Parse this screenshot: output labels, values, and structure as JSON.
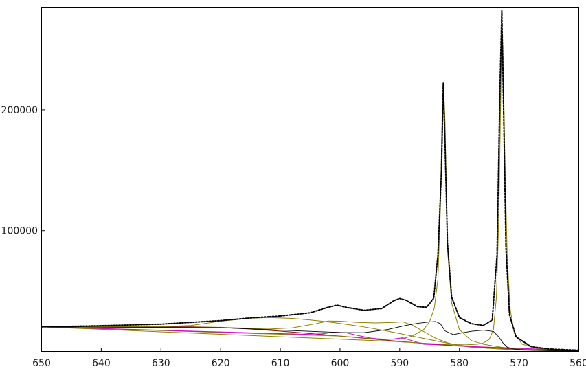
{
  "chart_data": {
    "type": "line",
    "title": "",
    "xlabel": "",
    "ylabel": "",
    "x_reversed": true,
    "xlim": [
      650,
      560
    ],
    "ylim": [
      0,
      285000
    ],
    "x_ticks": [
      650,
      640,
      630,
      620,
      610,
      600,
      590,
      580,
      570,
      560
    ],
    "x_tick_labels": [
      "650",
      "640",
      "630",
      "620",
      "610",
      "600",
      "590",
      "580",
      "570",
      "560"
    ],
    "y_ticks": [
      100000,
      200000
    ],
    "y_tick_labels": [
      "100000",
      "200000"
    ],
    "grid": false,
    "legend": "none",
    "colors": {
      "data": "#000000",
      "envelope": "#000000",
      "background": "#8b1a1a",
      "component": "#8b8000",
      "component_small": "#cc00cc",
      "axis": "#000000"
    },
    "series": [
      {
        "role": "data",
        "x": [
          650,
          640,
          630,
          620,
          615,
          610,
          605,
          602,
          600.5,
          599,
          596,
          593,
          591,
          590,
          589,
          587,
          585.5,
          584.3,
          583.6,
          583.0,
          582.7,
          582.4,
          582.0,
          581.3,
          580,
          578,
          576,
          574.5,
          573.7,
          573.2,
          572.9,
          572.6,
          572.2,
          571.6,
          570.5,
          568,
          565,
          560
        ],
        "y": [
          20300,
          21300,
          22600,
          25500,
          27700,
          29300,
          32000,
          36500,
          38300,
          36500,
          34000,
          35500,
          42000,
          43800,
          42500,
          37000,
          36500,
          44000,
          80000,
          150000,
          222000,
          170000,
          90000,
          45000,
          28000,
          23000,
          21500,
          26000,
          80000,
          220000,
          282000,
          200000,
          85000,
          30000,
          12000,
          4000,
          2000,
          1000
        ]
      },
      {
        "role": "envelope",
        "x": [
          650,
          640,
          630,
          620,
          615,
          610,
          605,
          602,
          600.5,
          599,
          596,
          593,
          591,
          590,
          589,
          587,
          585.5,
          584.3,
          583.6,
          583.0,
          582.7,
          582.4,
          582.0,
          581.3,
          580,
          578,
          576,
          574.5,
          573.7,
          573.2,
          572.9,
          572.6,
          572.2,
          571.6,
          570.5,
          568,
          565,
          560
        ],
        "y": [
          20300,
          21300,
          22600,
          25500,
          27700,
          29300,
          32000,
          36500,
          38300,
          36500,
          34000,
          35500,
          42000,
          43800,
          42500,
          37000,
          36500,
          44000,
          80000,
          150000,
          219000,
          170000,
          90000,
          45000,
          28000,
          23000,
          21500,
          26000,
          80000,
          220000,
          276000,
          200000,
          85000,
          30000,
          12000,
          4000,
          2000,
          1000
        ]
      },
      {
        "role": "background",
        "x": [
          650,
          640,
          630,
          625,
          620,
          615,
          610,
          605,
          600,
          595,
          590,
          585,
          580,
          575,
          570,
          565,
          560
        ],
        "y": [
          20300,
          20300,
          20500,
          20400,
          19800,
          18500,
          16800,
          14800,
          12700,
          10500,
          8300,
          6300,
          4500,
          3100,
          1900,
          1100,
          600
        ]
      },
      {
        "role": "component",
        "x": [
          650,
          630,
          625,
          620,
          615,
          612,
          608,
          605,
          603,
          601,
          599,
          596,
          592,
          589,
          587,
          585,
          583,
          581,
          580,
          579,
          577,
          575,
          573,
          571,
          569,
          566,
          563,
          560
        ],
        "y": [
          20300,
          20600,
          21500,
          25000,
          27500,
          28000,
          27300,
          26000,
          25000,
          23800,
          22500,
          20300,
          16800,
          13800,
          11800,
          9800,
          7800,
          6000,
          5200,
          4500,
          3400,
          2600,
          1900,
          1400,
          1000,
          700,
          500,
          400
        ]
      },
      {
        "role": "component",
        "x": [
          650,
          620,
          612,
          608,
          604,
          602,
          600,
          597,
          594,
          591,
          589.5,
          588,
          586,
          584,
          582,
          580,
          578,
          575,
          572,
          569,
          566,
          563,
          560
        ],
        "y": [
          20300,
          20000,
          18500,
          19500,
          23000,
          25200,
          25000,
          24000,
          23600,
          24000,
          24500,
          22000,
          16500,
          11000,
          7200,
          4700,
          3500,
          2500,
          1700,
          1200,
          850,
          600,
          400
        ]
      },
      {
        "role": "component",
        "x": [
          650,
          600,
          595,
          592,
          590,
          588,
          586,
          585,
          584.2,
          583.6,
          583.2,
          582.9,
          582.6,
          582.4,
          582.0,
          581.3,
          580,
          578,
          576,
          573,
          570,
          565,
          560
        ],
        "y": [
          20300,
          12700,
          10800,
          10000,
          10200,
          12500,
          18000,
          24500,
          36000,
          60000,
          115000,
          196000,
          213000,
          190000,
          85000,
          40000,
          18000,
          9000,
          6000,
          3500,
          2000,
          1000,
          500
        ]
      },
      {
        "role": "component",
        "x": [
          650,
          592,
          586,
          582,
          579,
          577,
          576,
          575,
          574.3,
          573.8,
          573.4,
          573.1,
          572.9,
          572.7,
          572.4,
          572.0,
          571.5,
          570.8,
          569.5,
          567,
          564,
          560
        ],
        "y": [
          20300,
          8500,
          6800,
          5800,
          5500,
          6000,
          7000,
          10000,
          18000,
          45000,
          110000,
          205000,
          272000,
          250000,
          165000,
          80000,
          35000,
          15000,
          6000,
          2500,
          1200,
          600
        ]
      },
      {
        "role": "component_small",
        "x": [
          650,
          606,
          603,
          601,
          599,
          597,
          595,
          593,
          591,
          589.5,
          588,
          586,
          584,
          580,
          560
        ],
        "y": [
          20300,
          14200,
          14600,
          15900,
          15500,
          13200,
          11200,
          10000,
          10300,
          11300,
          9000,
          6000,
          5600,
          4500,
          600
        ]
      },
      {
        "role": "envelope_partial",
        "x": [
          650,
          620,
          600,
          596,
          592,
          589,
          587,
          585,
          584,
          583.2,
          582.4,
          581,
          580,
          578,
          576,
          574.3,
          573.4,
          572.7,
          572,
          571,
          570,
          568,
          565,
          560
        ],
        "y": [
          20300,
          19600,
          15700,
          15500,
          18200,
          21500,
          23300,
          24400,
          24800,
          23000,
          17000,
          13900,
          15000,
          16700,
          17600,
          16500,
          12000,
          7000,
          3600,
          2100,
          1500,
          1000,
          700,
          500
        ]
      }
    ]
  }
}
